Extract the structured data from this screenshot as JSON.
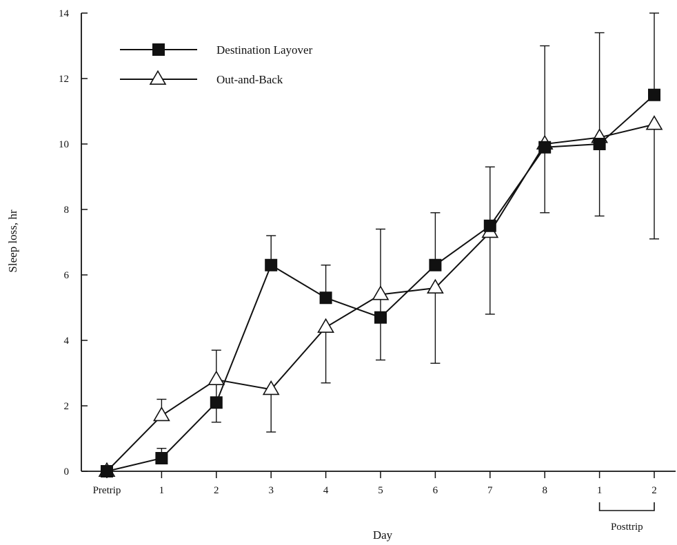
{
  "chart_data": {
    "type": "line",
    "title": "",
    "xlabel": "Day",
    "ylabel": "Sleep loss, hr",
    "ylim": [
      0,
      14
    ],
    "yticks": [
      0,
      2,
      4,
      6,
      8,
      10,
      12,
      14
    ],
    "categories": [
      "Pretrip",
      "1",
      "2",
      "3",
      "4",
      "5",
      "6",
      "7",
      "8",
      "1",
      "2"
    ],
    "group_labels": [
      {
        "label": "Posttrip",
        "from_index": 9,
        "to_index": 10
      }
    ],
    "grid": false,
    "legend": "top-left",
    "series": [
      {
        "name": "Destination Layover",
        "marker": "filled-square",
        "values": [
          0,
          0.4,
          2.1,
          6.3,
          5.3,
          4.7,
          6.3,
          7.5,
          9.9,
          10.0,
          11.5
        ],
        "error_upper": [
          0,
          0.7,
          3.7,
          7.2,
          6.3,
          null,
          7.9,
          9.3,
          13.0,
          13.4,
          14.0
        ],
        "error_lower": [
          0,
          null,
          1.5,
          null,
          null,
          null,
          null,
          null,
          null,
          null,
          null
        ]
      },
      {
        "name": "Out-and-Back",
        "marker": "open-triangle",
        "values": [
          0,
          1.7,
          2.8,
          2.5,
          4.4,
          5.4,
          5.6,
          7.3,
          10.0,
          10.2,
          10.6
        ],
        "error_upper": [
          0,
          2.2,
          null,
          null,
          null,
          7.4,
          null,
          null,
          null,
          null,
          null
        ],
        "error_lower": [
          0,
          null,
          null,
          1.2,
          2.7,
          3.4,
          3.3,
          4.8,
          7.9,
          7.8,
          7.1
        ]
      }
    ],
    "colors": {
      "line": "#111111",
      "marker_fill": "#111111",
      "background": "#ffffff"
    }
  }
}
